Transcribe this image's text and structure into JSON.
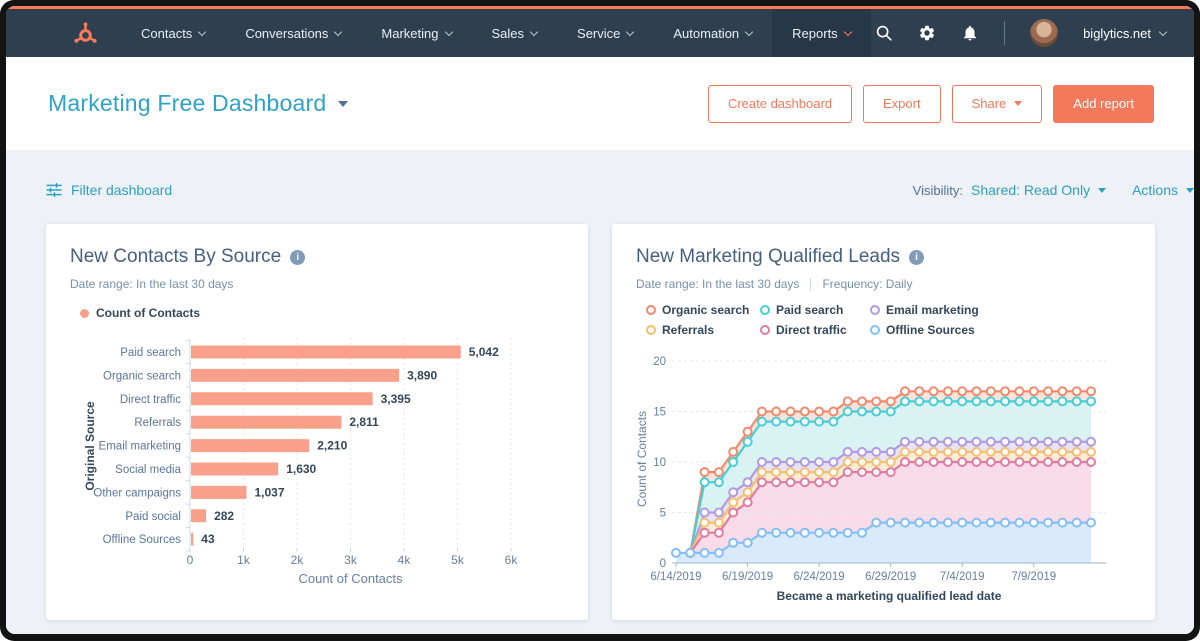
{
  "theme": {
    "accent_orange": "#ff7a59",
    "button_orange": "#f2795c",
    "nav_bg": "#2e3f50",
    "link_teal": "#2e9fc0",
    "text_dark": "#33475b",
    "text_muted": "#7691ad",
    "page_bg": "#eef2f7"
  },
  "nav": {
    "items": [
      {
        "label": "Contacts",
        "active": false
      },
      {
        "label": "Conversations",
        "active": false
      },
      {
        "label": "Marketing",
        "active": false
      },
      {
        "label": "Sales",
        "active": false
      },
      {
        "label": "Service",
        "active": false
      },
      {
        "label": "Automation",
        "active": false
      },
      {
        "label": "Reports",
        "active": true
      }
    ],
    "icons": [
      "search-icon",
      "gear-icon",
      "bell-icon"
    ],
    "account_label": "biglytics.net"
  },
  "header": {
    "title": "Marketing Free Dashboard",
    "buttons": {
      "create_dashboard": "Create dashboard",
      "export": "Export",
      "share": "Share",
      "add_report": "Add report"
    }
  },
  "filter_bar": {
    "filter_label": "Filter dashboard",
    "visibility_label": "Visibility:",
    "visibility_value": "Shared: Read Only",
    "actions_label": "Actions"
  },
  "chart_data": [
    {
      "type": "bar",
      "orientation": "horizontal",
      "title": "New Contacts By Source",
      "subtitle": "Date range: In the last 30 days",
      "legend": [
        {
          "name": "Count of Contacts",
          "color": "#f9a08a"
        }
      ],
      "categories": [
        "Paid search",
        "Organic search",
        "Direct traffic",
        "Referrals",
        "Email marketing",
        "Social media",
        "Other campaigns",
        "Paid social",
        "Offline Sources"
      ],
      "values": [
        5042,
        3890,
        3395,
        2811,
        2210,
        1630,
        1037,
        282,
        43
      ],
      "value_labels": [
        "5,042",
        "3,890",
        "3,395",
        "2,811",
        "2,210",
        "1,630",
        "1,037",
        "282",
        "43"
      ],
      "xlabel": "Count of Contacts",
      "ylabel": "Original Source",
      "xlim": [
        0,
        6000
      ],
      "xticks": [
        "0",
        "1k",
        "2k",
        "3k",
        "4k",
        "5k",
        "6k"
      ],
      "grid": "vertical-dashed",
      "bar_color": "#f9a08a"
    },
    {
      "type": "line",
      "title": "New Marketing Qualified Leads",
      "subtitle_date": "Date range: In the last 30 days",
      "subtitle_freq": "Frequency: Daily",
      "xlabel": "Became a marketing qualified lead date",
      "ylabel": "Count of Contacts",
      "ylim": [
        0,
        20
      ],
      "yticks": [
        "0",
        "5",
        "10",
        "15",
        "20"
      ],
      "xticks": [
        "6/14/2019",
        "6/19/2019",
        "6/24/2019",
        "6/29/2019",
        "7/4/2019",
        "7/9/2019"
      ],
      "x_tick_interval_days": 5,
      "points_per_series": 30,
      "grid": "horizontal-dashed",
      "legend_position": "top",
      "series": [
        {
          "name": "Organic search",
          "color": "#ef8b6d",
          "fill": "#fbe3dc",
          "values": [
            null,
            1,
            9,
            9,
            11,
            13,
            15,
            15,
            15,
            15,
            15,
            15,
            16,
            16,
            16,
            16,
            17,
            17,
            17,
            17,
            17,
            17,
            17,
            17,
            17,
            17,
            17,
            17,
            17,
            17
          ]
        },
        {
          "name": "Paid search",
          "color": "#45cfd4",
          "fill": "#d9f3f3",
          "values": [
            null,
            1,
            8,
            8,
            10,
            12,
            14,
            14,
            14,
            14,
            14,
            14,
            15,
            15,
            15,
            15,
            16,
            16,
            16,
            16,
            16,
            16,
            16,
            16,
            16,
            16,
            16,
            16,
            16,
            16
          ]
        },
        {
          "name": "Email marketing",
          "color": "#b09ae2",
          "fill": "#e9e3f8",
          "values": [
            null,
            1,
            5,
            5,
            7,
            8,
            10,
            10,
            10,
            10,
            10,
            10,
            11,
            11,
            11,
            11,
            12,
            12,
            12,
            12,
            12,
            12,
            12,
            12,
            12,
            12,
            12,
            12,
            12,
            12
          ]
        },
        {
          "name": "Referrals",
          "color": "#f5bf71",
          "fill": "#fcecd4",
          "values": [
            null,
            1,
            4,
            4,
            6,
            7,
            9,
            9,
            9,
            9,
            9,
            9,
            10,
            10,
            10,
            10,
            11,
            11,
            11,
            11,
            11,
            11,
            11,
            11,
            11,
            11,
            11,
            11,
            11,
            11
          ]
        },
        {
          "name": "Direct traffic",
          "color": "#e07ba3",
          "fill": "#f9dce8",
          "values": [
            null,
            1,
            3,
            3,
            5,
            6,
            8,
            8,
            8,
            8,
            8,
            8,
            9,
            9,
            9,
            9,
            10,
            10,
            10,
            10,
            10,
            10,
            10,
            10,
            10,
            10,
            10,
            10,
            10,
            10
          ]
        },
        {
          "name": "Offline Sources",
          "color": "#83bff5",
          "fill": "#d9eafc",
          "values": [
            1,
            1,
            1,
            1,
            2,
            2,
            3,
            3,
            3,
            3,
            3,
            3,
            3,
            3,
            4,
            4,
            4,
            4,
            4,
            4,
            4,
            4,
            4,
            4,
            4,
            4,
            4,
            4,
            4,
            4
          ]
        }
      ]
    }
  ]
}
